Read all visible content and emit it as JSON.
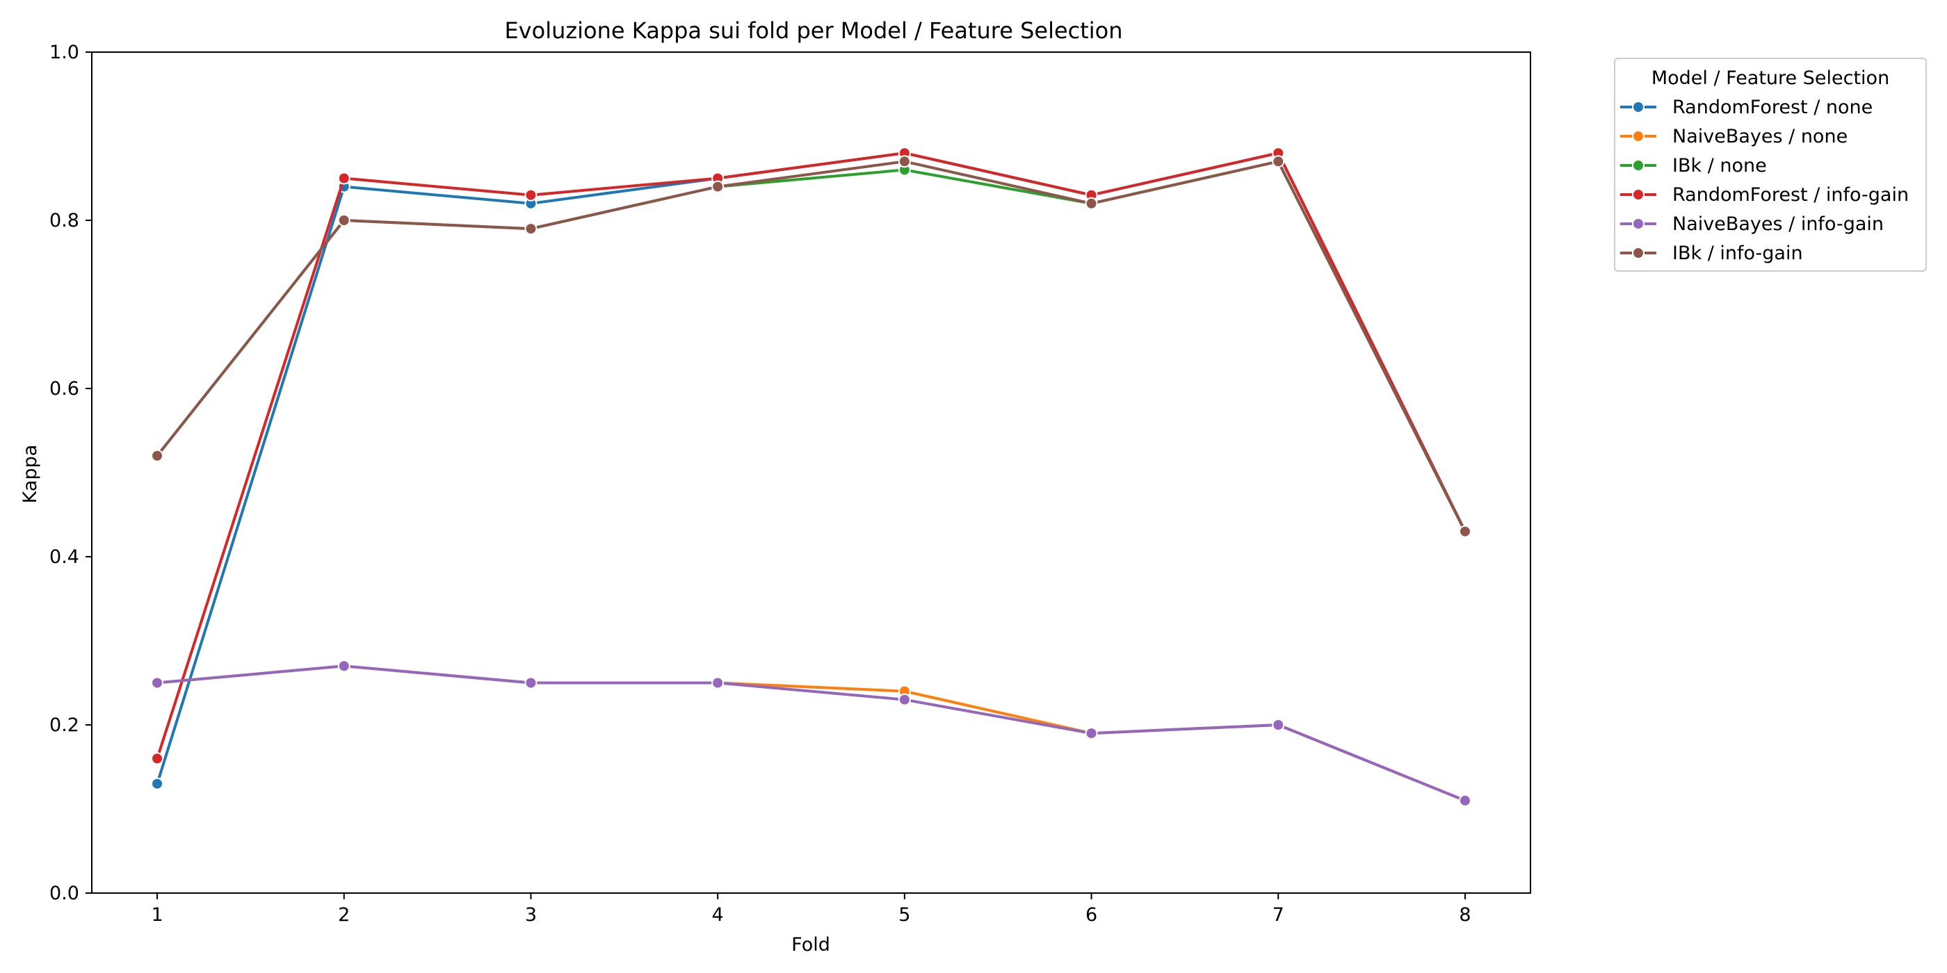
{
  "chart_data": {
    "type": "line",
    "title": "Evoluzione Kappa sui fold per Model / Feature Selection",
    "xlabel": "Fold",
    "ylabel": "Kappa",
    "x": [
      1,
      2,
      3,
      4,
      5,
      6,
      7,
      8
    ],
    "x_tick_labels": [
      "1",
      "2",
      "3",
      "4",
      "5",
      "6",
      "7",
      "8"
    ],
    "xlim": [
      0.65,
      8.35
    ],
    "ylim": [
      0.0,
      1.0
    ],
    "y_ticks": [
      0.0,
      0.2,
      0.4,
      0.6,
      0.8,
      1.0
    ],
    "y_tick_labels": [
      "0.0",
      "0.2",
      "0.4",
      "0.6",
      "0.8",
      "1.0"
    ],
    "grid": false,
    "legend": {
      "title": "Model / Feature Selection",
      "placement": "outside-top-right"
    },
    "series": [
      {
        "name": "RandomForest / none",
        "color": "#1f77b4",
        "values": [
          0.13,
          0.84,
          0.82,
          0.85,
          0.88,
          0.83,
          0.88,
          0.43
        ]
      },
      {
        "name": "NaiveBayes / none",
        "color": "#ff7f0e",
        "values": [
          0.25,
          0.27,
          0.25,
          0.25,
          0.24,
          0.19,
          0.2,
          0.11
        ]
      },
      {
        "name": "IBk / none",
        "color": "#2ca02c",
        "values": [
          0.52,
          0.8,
          0.79,
          0.84,
          0.86,
          0.82,
          0.87,
          0.43
        ]
      },
      {
        "name": "RandomForest / info-gain",
        "color": "#d62728",
        "values": [
          0.16,
          0.85,
          0.83,
          0.85,
          0.88,
          0.83,
          0.88,
          0.43
        ]
      },
      {
        "name": "NaiveBayes / info-gain",
        "color": "#9467bd",
        "values": [
          0.25,
          0.27,
          0.25,
          0.25,
          0.23,
          0.19,
          0.2,
          0.11
        ]
      },
      {
        "name": "IBk / info-gain",
        "color": "#8c564b",
        "values": [
          0.52,
          0.8,
          0.79,
          0.84,
          0.87,
          0.82,
          0.87,
          0.43
        ]
      }
    ]
  }
}
